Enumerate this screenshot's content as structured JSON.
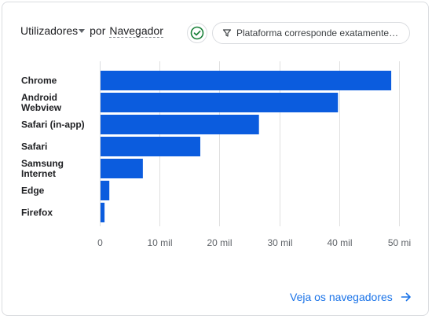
{
  "header": {
    "metric_label": "Utilizadores",
    "by_label": "por",
    "dimension_label": "Navegador"
  },
  "filter": {
    "label": "Plataforma corresponde exatamente…"
  },
  "footer": {
    "link_label": "Veja os navegadores"
  },
  "colors": {
    "bar": "#0b5cde",
    "accent": "#1a73e8",
    "check": "#188038"
  },
  "chart_data": {
    "type": "bar",
    "orientation": "horizontal",
    "categories": [
      "Chrome",
      "Android Webview",
      "Safari (in-app)",
      "Safari",
      "Samsung Internet",
      "Edge",
      "Firefox"
    ],
    "category_lines": [
      [
        "Chrome"
      ],
      [
        "Android",
        "Webview"
      ],
      [
        "Safari (in-app)"
      ],
      [
        "Safari"
      ],
      [
        "Samsung",
        "Internet"
      ],
      [
        "Edge"
      ],
      [
        "Firefox"
      ]
    ],
    "values": [
      48700,
      39800,
      26600,
      16800,
      7200,
      1600,
      800
    ],
    "xlim": [
      0,
      50000
    ],
    "xticks": [
      0,
      10000,
      20000,
      30000,
      40000,
      50000
    ],
    "xtick_labels": [
      "0",
      "10 mil",
      "20 mil",
      "30 mil",
      "40 mil",
      "50 mi"
    ],
    "grid": true
  }
}
